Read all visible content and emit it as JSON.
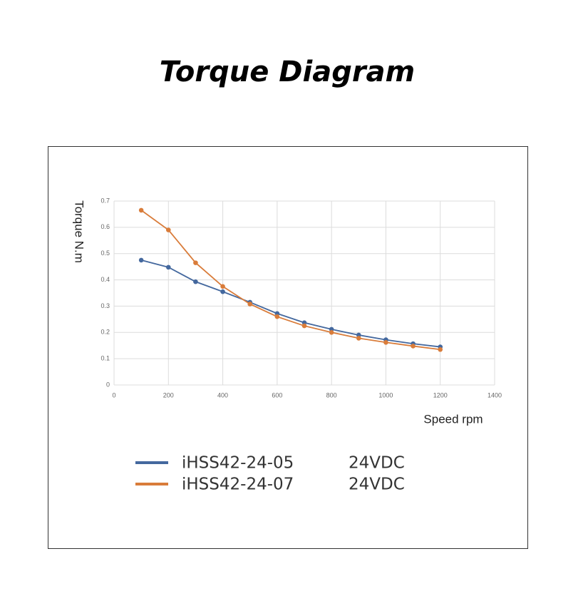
{
  "chart_data": {
    "type": "line",
    "title": "Torque Diagram",
    "x_label": "Speed rpm",
    "y_label": "Torque N.m",
    "x": [
      100,
      200,
      300,
      400,
      500,
      600,
      700,
      800,
      900,
      1000,
      1100,
      1200
    ],
    "series": [
      {
        "name": "iHSS42-24-05",
        "voltage": "24VDC",
        "color": "#44689e",
        "values": [
          0.475,
          0.448,
          0.393,
          0.355,
          0.315,
          0.272,
          0.237,
          0.212,
          0.19,
          0.172,
          0.157,
          0.145
        ]
      },
      {
        "name": "iHSS42-24-07",
        "voltage": "24VDC",
        "color": "#d97c3a",
        "values": [
          0.665,
          0.59,
          0.465,
          0.375,
          0.308,
          0.26,
          0.225,
          0.2,
          0.178,
          0.162,
          0.148,
          0.135
        ]
      }
    ],
    "xlim": [
      0,
      1400
    ],
    "xticks": [
      0,
      200,
      400,
      600,
      800,
      1000,
      1200,
      1400
    ],
    "ylim": [
      0,
      0.7
    ],
    "yticks": [
      0,
      0.1,
      0.2,
      0.3,
      0.4,
      0.5,
      0.6,
      0.7
    ],
    "grid": true
  }
}
